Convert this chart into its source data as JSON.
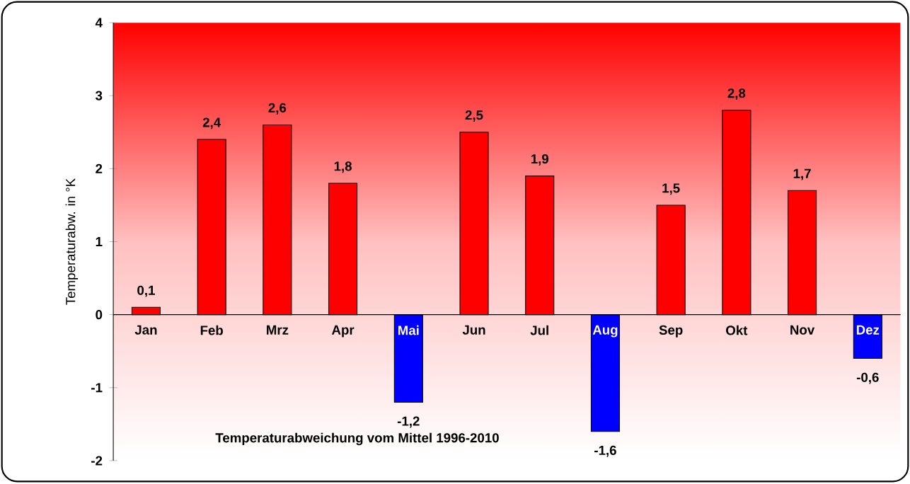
{
  "chart_data": {
    "type": "bar",
    "ylabel": "Temperaturabw. in °K",
    "categories": [
      "Jan",
      "Feb",
      "Mrz",
      "Apr",
      "Mai",
      "Jun",
      "Jul",
      "Aug",
      "Sep",
      "Okt",
      "Nov",
      "Dez"
    ],
    "values": [
      0.1,
      2.4,
      2.6,
      1.8,
      -1.2,
      2.5,
      1.9,
      -1.6,
      1.5,
      2.8,
      1.7,
      -0.6
    ],
    "value_labels": [
      "0,1",
      "2,4",
      "2,6",
      "1,8",
      "-1,2",
      "2,5",
      "1,9",
      "-1,6",
      "1,5",
      "2,8",
      "1,7",
      "-0,6"
    ],
    "colors": [
      "#ff0000",
      "#ff0000",
      "#ff0000",
      "#ff0000",
      "#0000ff",
      "#ff0000",
      "#ff0000",
      "#0000ff",
      "#ff0000",
      "#ff0000",
      "#ff0000",
      "#0000ff"
    ],
    "ylim": [
      -2,
      4
    ],
    "yticks": [
      -2,
      -1,
      0,
      1,
      2,
      3,
      4
    ],
    "grid": false,
    "annotations": [
      {
        "text": "Temperaturabweichung vom Mittel 1996-2010"
      }
    ]
  }
}
